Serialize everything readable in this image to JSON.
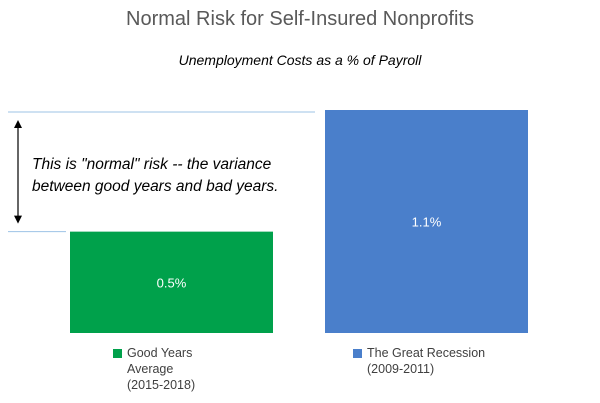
{
  "chart_data": {
    "type": "bar",
    "title": "Normal Risk for Self-Insured Nonprofits",
    "subtitle": "Unemployment Costs as a % of Payroll",
    "categories": [
      "Good Years\nAverage\n(2015-2018)",
      "The Great Recession\n(2009-2011)"
    ],
    "values": [
      0.5,
      1.1
    ],
    "data_labels": [
      "0.5%",
      "1.1%"
    ],
    "colors": [
      "#00A14B",
      "#4A7FCB"
    ],
    "ylim": [
      0,
      1.1
    ],
    "grid": false,
    "legend_position": "bottom",
    "annotation": "This is \"normal\" risk -- the variance between good years and bad years.",
    "reference_line_color": "#9DC3E6",
    "arrow_color": "#000000"
  }
}
